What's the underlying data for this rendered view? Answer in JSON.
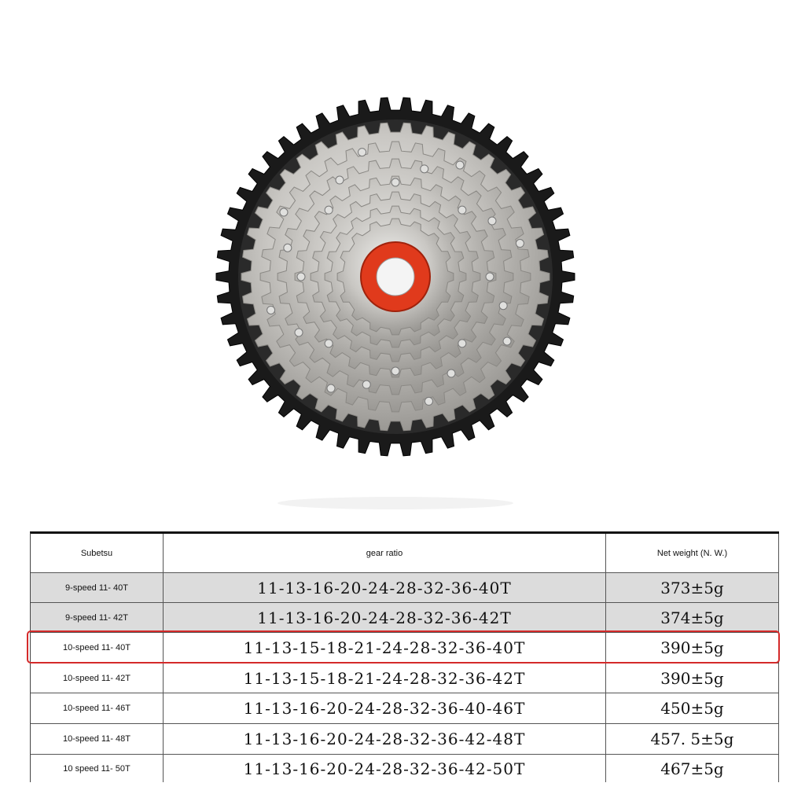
{
  "table": {
    "header": [
      "Subetsu",
      "gear ratio",
      "Net weight (N. W.)"
    ],
    "rows": [
      [
        "9-speed 11- 40T",
        "11-13-16-20-24-28-32-36-40T",
        "373±5g"
      ],
      [
        "9-speed 11- 42T",
        "11-13-16-20-24-28-32-36-42T",
        "374±5g"
      ],
      [
        "10-speed 11- 40T",
        "11-13-15-18-21-24-28-32-36-40T",
        "390±5g"
      ],
      [
        "10-speed 11- 42T",
        "11-13-15-18-21-24-28-32-36-42T",
        "390±5g"
      ],
      [
        "10-speed 11- 46T",
        "11-13-16-20-24-28-32-36-40-46T",
        "450±5g"
      ],
      [
        "10-speed 11- 48T",
        "11-13-16-20-24-28-32-36-42-48T",
        "457. 5±5g"
      ],
      [
        "10 speed 11- 50T",
        "11-13-16-20-24-28-32-36-42-50T",
        "467±5g"
      ]
    ]
  }
}
